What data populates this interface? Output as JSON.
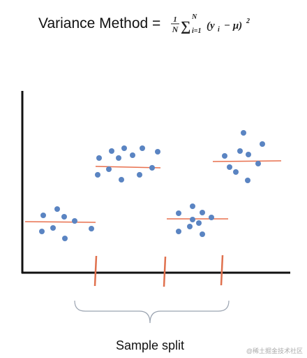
{
  "title": {
    "label": "Variance Method =",
    "formula": {
      "numerator": "1",
      "denominator": "N",
      "sum": "∑",
      "upper": "N",
      "lower": "i=1",
      "body": "(y",
      "subscript": "i",
      "rest": "− μ)",
      "power": "2"
    }
  },
  "caption": "Sample split",
  "watermark": "@稀土掘金技术社区"
}
